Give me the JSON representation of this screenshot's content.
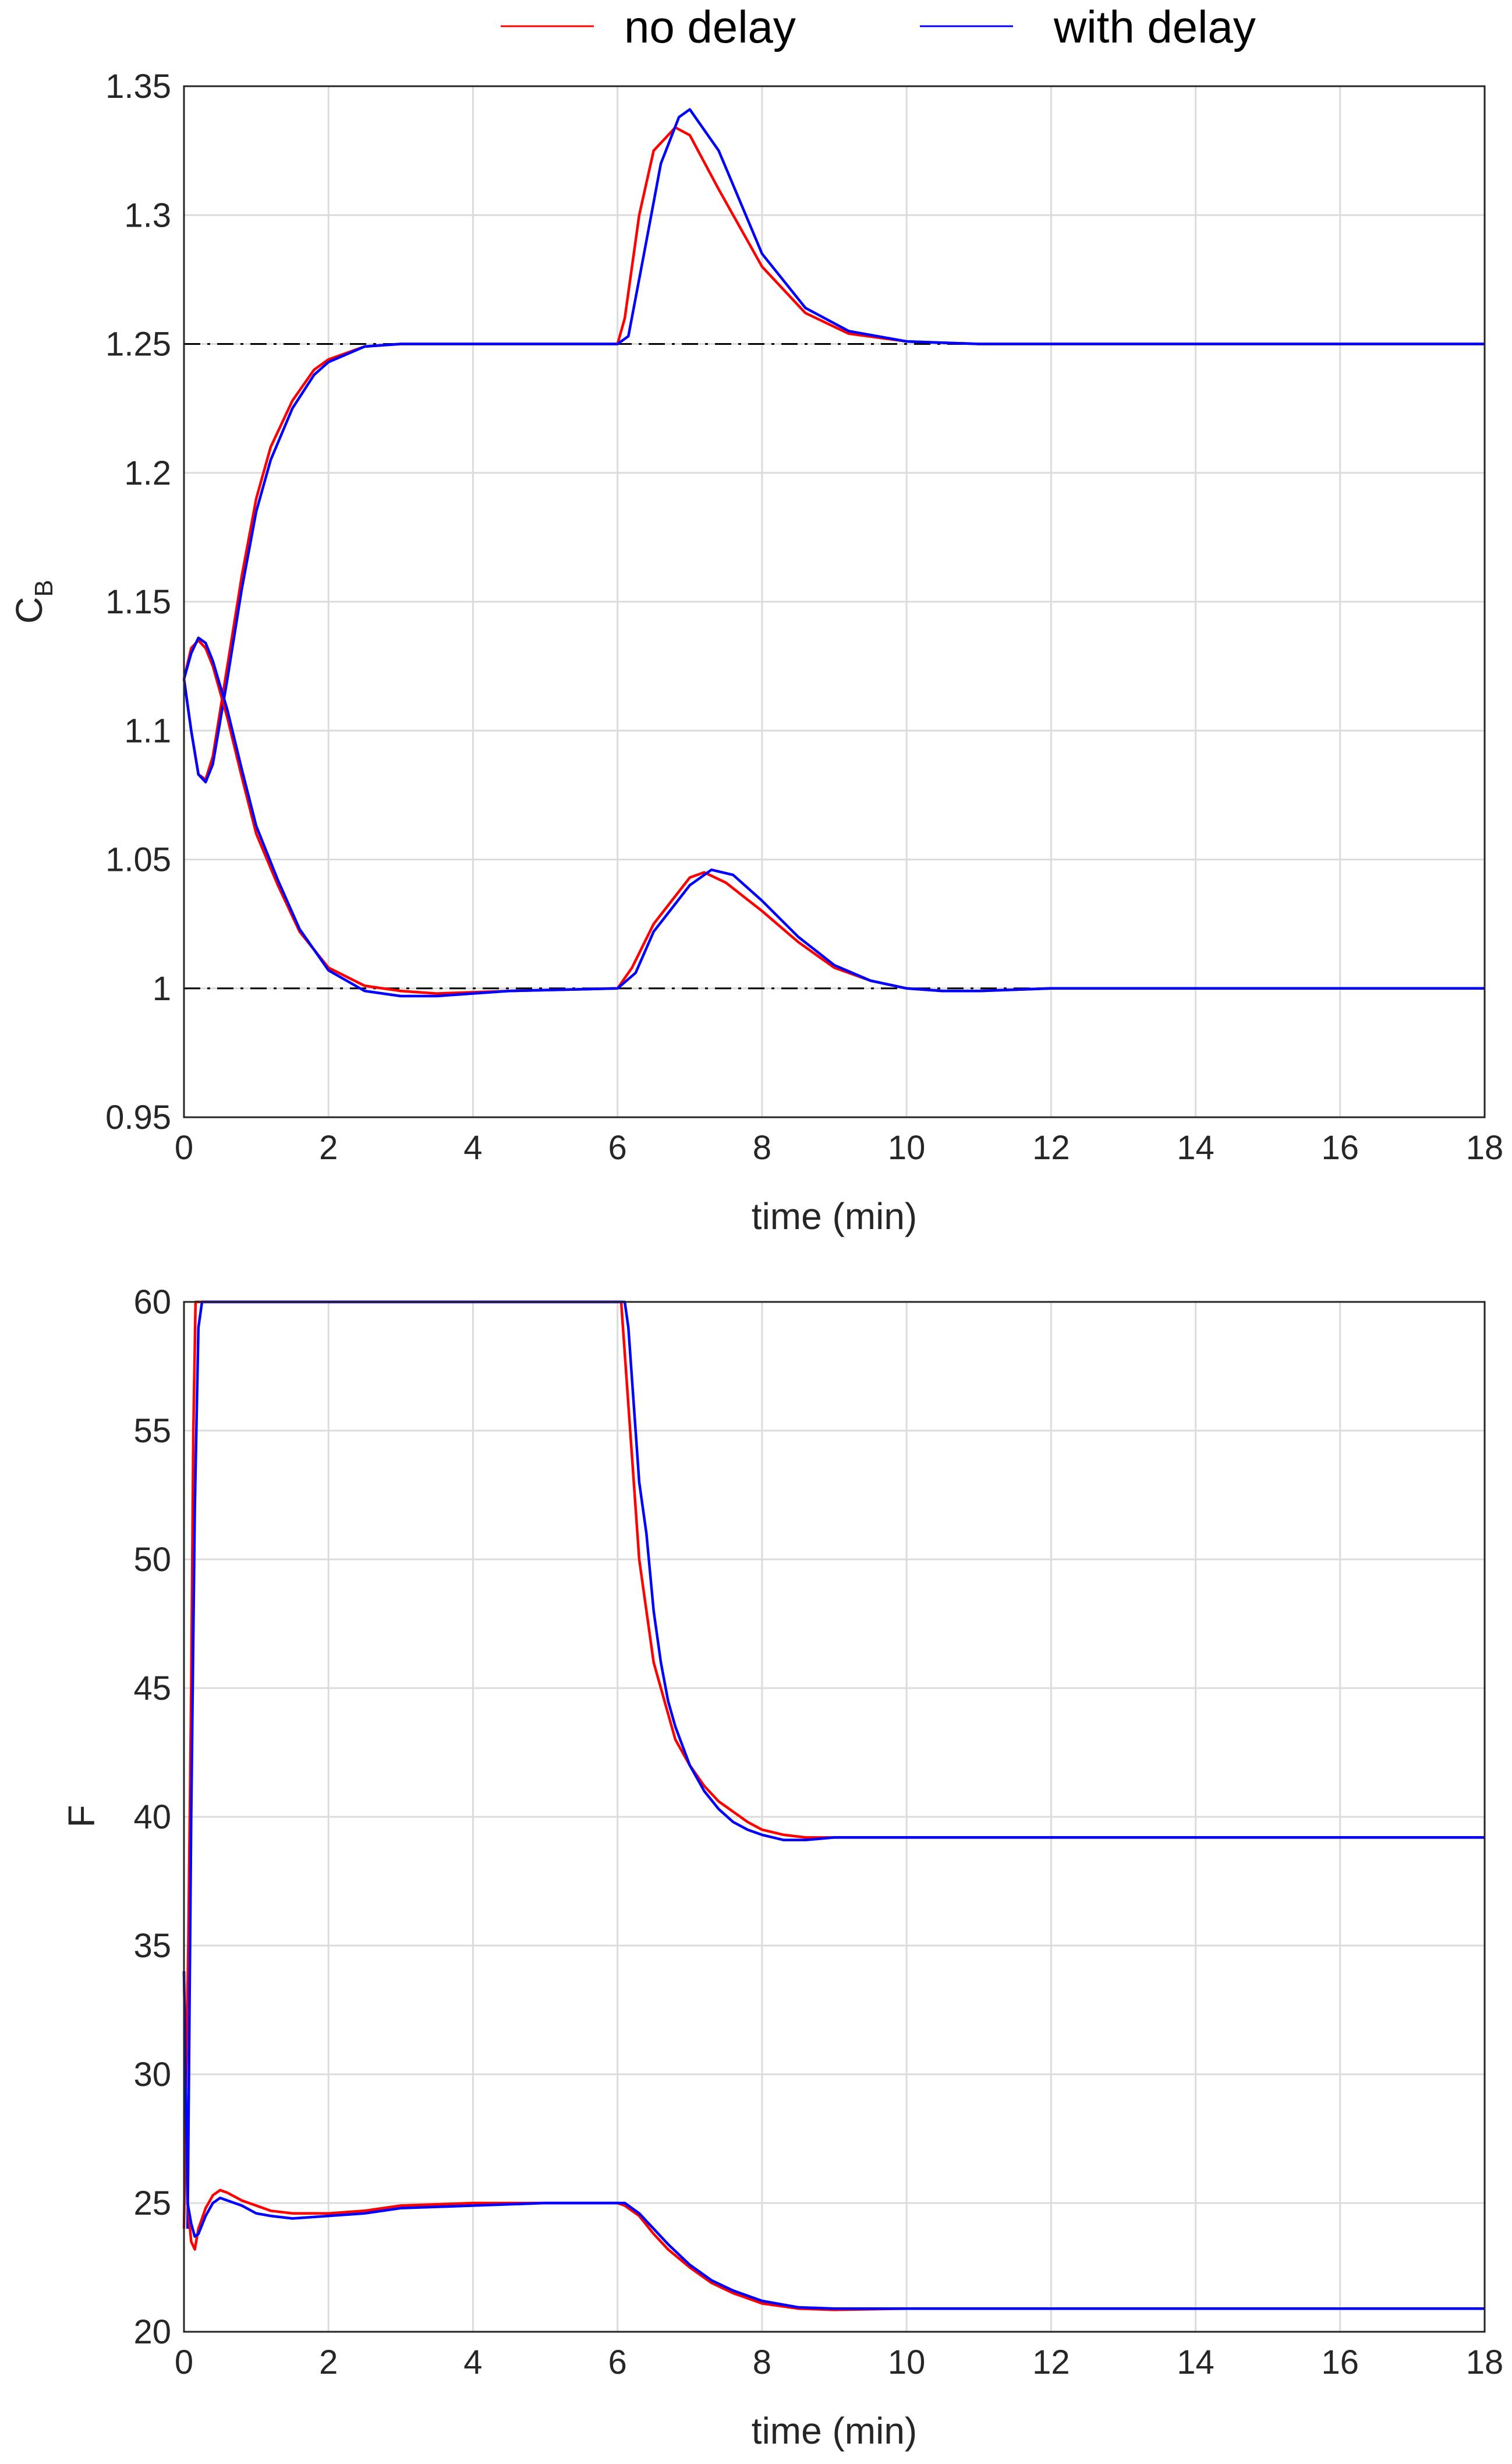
{
  "colors": {
    "no_delay": "#ff0000",
    "with_delay": "#0000ff",
    "reference": "#000000",
    "grid": "#dcdcdc",
    "axes": "#262626"
  },
  "legend": {
    "placement": "top-center",
    "entries": [
      {
        "label": "no delay",
        "color": "#ff0000"
      },
      {
        "label": "with delay",
        "color": "#0000ff"
      }
    ]
  },
  "chart_data": [
    {
      "type": "line",
      "xlabel": "time (min)",
      "ylabel": "C",
      "ylabel_subscript": "B",
      "xlim": [
        0,
        18
      ],
      "ylim": [
        0.95,
        1.35
      ],
      "xticks": [
        "0",
        "2",
        "4",
        "6",
        "8",
        "10",
        "12",
        "14",
        "16",
        "18"
      ],
      "yticks": [
        "0.95",
        "1",
        "1.05",
        "1.1",
        "1.15",
        "1.2",
        "1.25",
        "1.3",
        "1.35"
      ],
      "grid": true,
      "reference_lines": [
        1.25,
        1.0
      ],
      "series": [
        {
          "name": "no delay",
          "group": "upper",
          "color": "#ff0000",
          "x": [
            0,
            0.1,
            0.2,
            0.3,
            0.4,
            0.6,
            0.8,
            1.0,
            1.2,
            1.5,
            1.8,
            2.0,
            2.5,
            3.0,
            4.0,
            6.0,
            6.1,
            6.3,
            6.5,
            6.8,
            7.0,
            7.4,
            8.0,
            8.6,
            9.2,
            10.0,
            11.0,
            18.0
          ],
          "y": [
            1.12,
            1.1,
            1.083,
            1.081,
            1.09,
            1.125,
            1.16,
            1.19,
            1.21,
            1.228,
            1.24,
            1.244,
            1.249,
            1.25,
            1.25,
            1.25,
            1.26,
            1.3,
            1.325,
            1.334,
            1.331,
            1.31,
            1.28,
            1.262,
            1.254,
            1.251,
            1.25,
            1.25
          ]
        },
        {
          "name": "with delay",
          "group": "upper",
          "color": "#0000ff",
          "x": [
            0,
            0.1,
            0.2,
            0.3,
            0.4,
            0.6,
            0.8,
            1.0,
            1.2,
            1.5,
            1.8,
            2.0,
            2.5,
            3.0,
            4.0,
            6.0,
            6.15,
            6.4,
            6.6,
            6.85,
            7.0,
            7.4,
            8.0,
            8.6,
            9.2,
            10.0,
            11.0,
            18.0
          ],
          "y": [
            1.12,
            1.1,
            1.083,
            1.08,
            1.087,
            1.12,
            1.155,
            1.185,
            1.205,
            1.225,
            1.238,
            1.243,
            1.249,
            1.25,
            1.25,
            1.25,
            1.253,
            1.29,
            1.32,
            1.338,
            1.341,
            1.325,
            1.285,
            1.264,
            1.255,
            1.251,
            1.25,
            1.25
          ]
        },
        {
          "name": "no delay",
          "group": "lower",
          "color": "#ff0000",
          "x": [
            0,
            0.1,
            0.2,
            0.3,
            0.4,
            0.6,
            0.8,
            1.0,
            1.3,
            1.6,
            2.0,
            2.5,
            3.0,
            3.5,
            4.5,
            6.0,
            6.2,
            6.5,
            7.0,
            7.2,
            7.5,
            8.0,
            8.5,
            9.0,
            9.5,
            10.0,
            10.5,
            11.0,
            12.0,
            18.0
          ],
          "y": [
            1.12,
            1.132,
            1.135,
            1.132,
            1.125,
            1.105,
            1.082,
            1.06,
            1.04,
            1.022,
            1.008,
            1.001,
            0.999,
            0.998,
            0.999,
            1.0,
            1.008,
            1.025,
            1.043,
            1.045,
            1.041,
            1.03,
            1.018,
            1.008,
            1.003,
            1.0,
            0.999,
            0.999,
            1.0,
            1.0
          ]
        },
        {
          "name": "with delay",
          "group": "lower",
          "color": "#0000ff",
          "x": [
            0,
            0.1,
            0.2,
            0.3,
            0.4,
            0.6,
            0.8,
            1.0,
            1.3,
            1.6,
            2.0,
            2.5,
            3.0,
            3.5,
            4.5,
            6.0,
            6.25,
            6.5,
            7.0,
            7.3,
            7.6,
            8.0,
            8.5,
            9.0,
            9.5,
            10.0,
            10.5,
            11.0,
            12.0,
            18.0
          ],
          "y": [
            1.12,
            1.13,
            1.136,
            1.134,
            1.127,
            1.108,
            1.085,
            1.063,
            1.042,
            1.023,
            1.007,
            0.999,
            0.997,
            0.997,
            0.999,
            1.0,
            1.006,
            1.022,
            1.04,
            1.046,
            1.044,
            1.034,
            1.02,
            1.009,
            1.003,
            1.0,
            0.999,
            0.999,
            1.0,
            1.0
          ]
        }
      ]
    },
    {
      "type": "line",
      "xlabel": "time (min)",
      "ylabel": "F",
      "xlim": [
        0,
        18
      ],
      "ylim": [
        20,
        60
      ],
      "xticks": [
        "0",
        "2",
        "4",
        "6",
        "8",
        "10",
        "12",
        "14",
        "16",
        "18"
      ],
      "yticks": [
        "20",
        "25",
        "30",
        "35",
        "40",
        "45",
        "50",
        "55",
        "60"
      ],
      "grid": true,
      "series": [
        {
          "name": "no delay",
          "group": "upper",
          "color": "#ff0000",
          "x": [
            0,
            0.03,
            0.06,
            0.1,
            0.13,
            0.16,
            0.2,
            6.05,
            6.1,
            6.15,
            6.2,
            6.3,
            6.4,
            6.5,
            6.6,
            6.7,
            6.8,
            7.0,
            7.2,
            7.4,
            7.6,
            7.8,
            8.0,
            8.3,
            8.6,
            9.0,
            9.5,
            18.0
          ],
          "y": [
            24,
            30,
            35,
            45,
            55,
            60,
            60,
            60,
            58,
            56,
            54,
            50,
            48,
            46,
            45,
            44,
            43,
            42,
            41.2,
            40.6,
            40.2,
            39.8,
            39.5,
            39.3,
            39.2,
            39.2,
            39.2,
            39.2
          ]
        },
        {
          "name": "with delay",
          "group": "upper",
          "color": "#0000ff",
          "x": [
            0.05,
            0.1,
            0.15,
            0.2,
            0.25,
            6.1,
            6.15,
            6.2,
            6.25,
            6.3,
            6.4,
            6.5,
            6.6,
            6.7,
            6.8,
            7.0,
            7.2,
            7.4,
            7.6,
            7.8,
            8.0,
            8.3,
            8.6,
            9.0,
            9.5,
            18.0
          ],
          "y": [
            24,
            40,
            52,
            59,
            60,
            60,
            59,
            57,
            55,
            53,
            51,
            48,
            46,
            44.5,
            43.5,
            42,
            41,
            40.3,
            39.8,
            39.5,
            39.3,
            39.1,
            39.1,
            39.2,
            39.2,
            39.2
          ]
        },
        {
          "name": "no delay",
          "group": "lower",
          "color": "#ff0000",
          "x": [
            0,
            0.05,
            0.1,
            0.15,
            0.2,
            0.3,
            0.4,
            0.5,
            0.6,
            0.8,
            1.0,
            1.2,
            1.5,
            2.0,
            2.5,
            3.0,
            4.0,
            5.0,
            6.0,
            6.1,
            6.3,
            6.5,
            6.7,
            7.0,
            7.3,
            7.6,
            8.0,
            8.5,
            9.0,
            10.0,
            18.0
          ],
          "y": [
            34,
            25,
            23.5,
            23.2,
            24,
            24.8,
            25.3,
            25.5,
            25.4,
            25.1,
            24.9,
            24.7,
            24.6,
            24.6,
            24.7,
            24.9,
            25,
            25,
            25,
            24.9,
            24.5,
            23.8,
            23.2,
            22.5,
            21.9,
            21.5,
            21.1,
            20.9,
            20.85,
            20.9,
            20.9
          ]
        },
        {
          "name": "with delay",
          "group": "lower",
          "color": "#0000ff",
          "x": [
            0,
            0.05,
            0.1,
            0.15,
            0.2,
            0.3,
            0.4,
            0.5,
            0.6,
            0.8,
            1.0,
            1.2,
            1.5,
            2.0,
            2.5,
            3.0,
            4.0,
            5.0,
            6.0,
            6.1,
            6.3,
            6.5,
            6.7,
            7.0,
            7.3,
            7.6,
            8.0,
            8.5,
            9.0,
            10.0,
            18.0
          ],
          "y": [
            34,
            25,
            24.2,
            23.7,
            23.8,
            24.5,
            25,
            25.2,
            25.1,
            24.9,
            24.6,
            24.5,
            24.4,
            24.5,
            24.6,
            24.8,
            24.9,
            25,
            25,
            25,
            24.6,
            24,
            23.4,
            22.6,
            22,
            21.6,
            21.2,
            20.95,
            20.9,
            20.9,
            20.9
          ]
        }
      ]
    }
  ]
}
